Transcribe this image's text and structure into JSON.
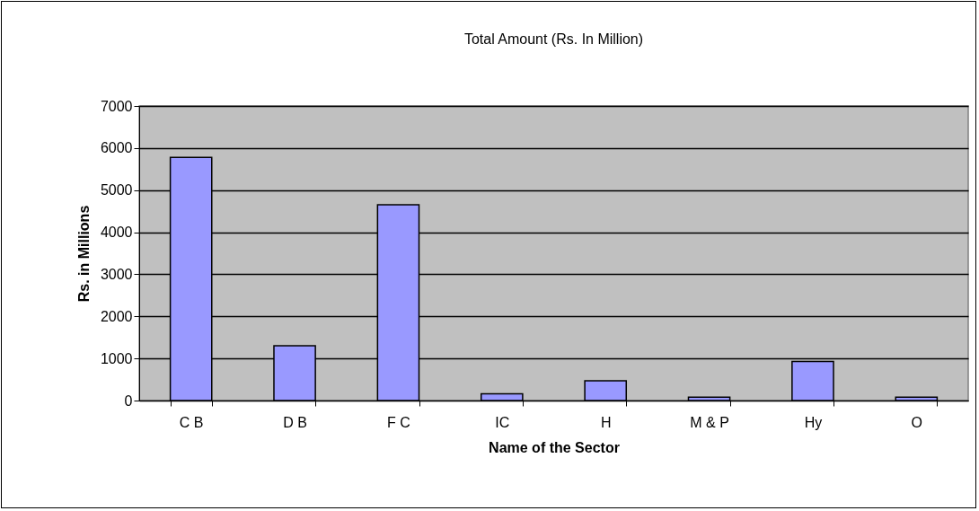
{
  "chart_data": {
    "type": "bar",
    "title": "Total Amount (Rs. In Million)",
    "xlabel": "Name of the Sector",
    "ylabel": "Rs. in Millions",
    "categories": [
      "C B",
      "D B",
      "F C",
      "IC",
      "H",
      "M & P",
      "Hy",
      "O"
    ],
    "series": [
      {
        "color": "#9999ff",
        "values": [
          5780,
          1300,
          4650,
          160,
          470,
          80,
          930,
          80
        ]
      }
    ],
    "ylim": [
      0,
      7000
    ],
    "yticks": [
      0,
      1000,
      2000,
      3000,
      4000,
      5000,
      6000,
      7000
    ],
    "grid": "y",
    "legend": false
  }
}
